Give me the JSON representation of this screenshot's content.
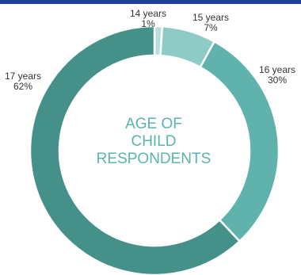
{
  "theme": {
    "bar_color": "#1f3f9a",
    "title_color": "#5ab4ae",
    "slice_colors": [
      "#b7dedb",
      "#8fcbc6",
      "#5fb3ac",
      "#45918a"
    ],
    "separator_color": "#ffffff"
  },
  "chart_data": {
    "type": "pie",
    "variant": "donut",
    "title_lines": [
      "AGE OF",
      "CHILD",
      "RESPONDENTS"
    ],
    "categories": [
      "14 years",
      "15 years",
      "16 years",
      "17 years"
    ],
    "values": [
      1,
      7,
      30,
      62
    ],
    "labels": [
      {
        "name": "14 years",
        "pct": "1%"
      },
      {
        "name": "15 years",
        "pct": "7%"
      },
      {
        "name": "16 years",
        "pct": "30%"
      },
      {
        "name": "17 years",
        "pct": "62%"
      }
    ]
  }
}
